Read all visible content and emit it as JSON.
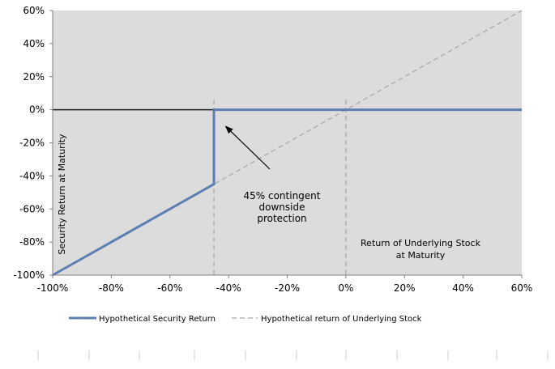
{
  "chart_data": {
    "type": "line",
    "title": "",
    "xlabel": "Return of Underlying Stock at Maturity",
    "xlabel_lines": [
      "Return of Underlying Stock",
      "at Maturity"
    ],
    "ylabel": "Security Return at Maturity",
    "xlim": [
      -100,
      60
    ],
    "ylim": [
      -100,
      60
    ],
    "x_ticks": [
      -100,
      -80,
      -60,
      -40,
      -20,
      0,
      20,
      40,
      60
    ],
    "x_tick_labels": [
      "-100%",
      "-80%",
      "-60%",
      "-40%",
      "-20%",
      "0%",
      "20%",
      "40%",
      "60%"
    ],
    "y_ticks": [
      60,
      40,
      20,
      0,
      -20,
      -40,
      -60,
      -80,
      -100
    ],
    "y_tick_labels": [
      "60%",
      "40%",
      "20%",
      "0%",
      "-20%",
      "-40%",
      "-60%",
      "-80%",
      "-100%"
    ],
    "grid": false,
    "legend_position": "bottom",
    "series": [
      {
        "name": "Hypothetical Security Return",
        "color": "#5b7fb3",
        "style": "solid",
        "points": [
          [
            -100,
            -100
          ],
          [
            -45,
            -45
          ],
          [
            -45,
            0
          ],
          [
            60,
            0
          ]
        ]
      },
      {
        "name": "Hypothetical return of Underlying Stock",
        "color": "#a6a6a6",
        "style": "dashed",
        "points": [
          [
            -100,
            -100
          ],
          [
            60,
            60
          ]
        ]
      }
    ],
    "reference_lines": [
      {
        "axis": "x",
        "value": -45
      },
      {
        "axis": "x",
        "value": 0
      }
    ],
    "annotations": [
      {
        "lines": [
          "45% contingent",
          "downside",
          "protection"
        ],
        "arrow_target": [
          -41,
          -10
        ]
      }
    ],
    "colors": {
      "plot_background": "#dcdcdc",
      "zero_line": "#1a1a1a",
      "reference_line": "#a6a6a6"
    }
  }
}
